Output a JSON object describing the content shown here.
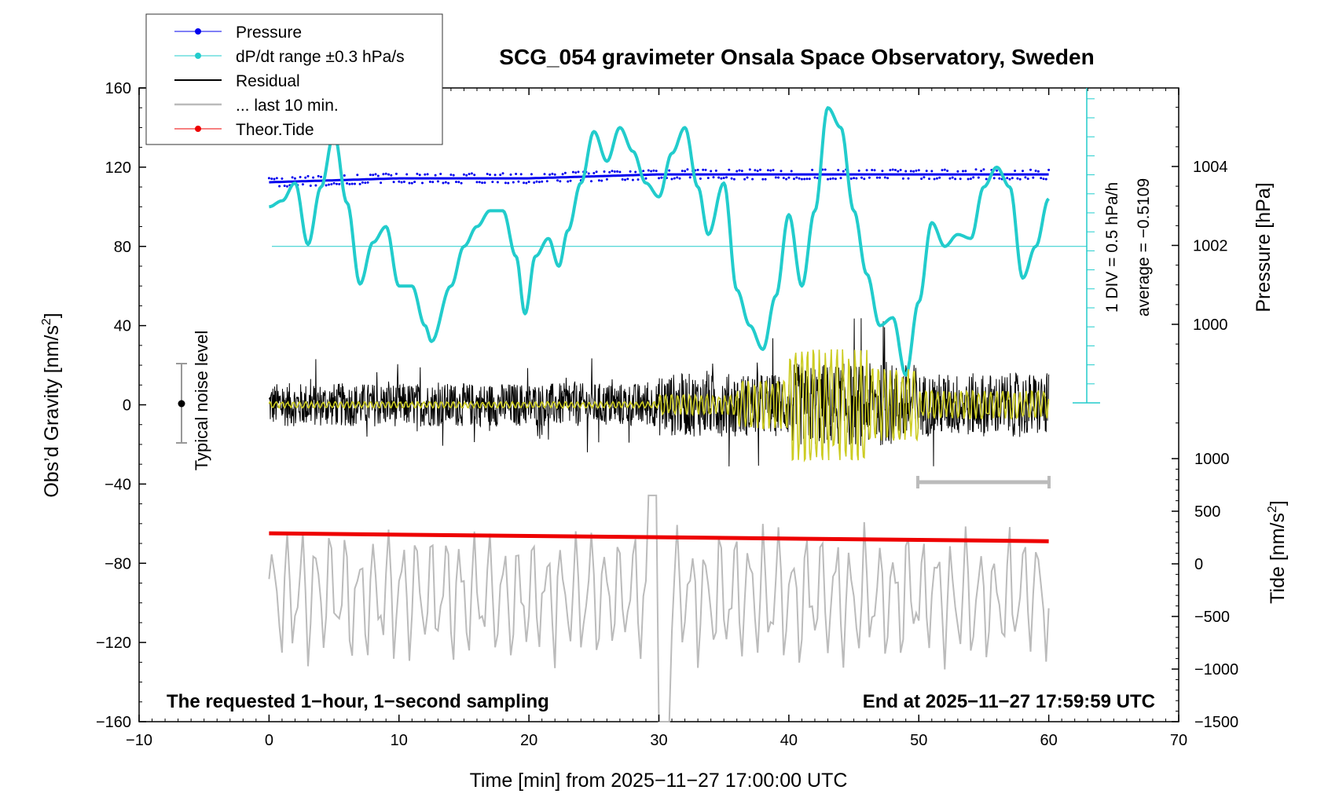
{
  "chart_data": {
    "type": "line",
    "title": "SCG_054 gravimeter Onsala Space Observatory, Sweden",
    "xlabel": "Time [min] from 2025−11−27 17:00:00 UTC",
    "ylabel": "Obs’d Gravity [nm/s²]",
    "ylabel_parts": [
      "Obs’d Gravity [nm/s",
      "2",
      "]"
    ],
    "y2label": "Pressure [hPa]",
    "y3label": "Tide [nm/s²]",
    "y3label_parts": [
      "Tide [nm/s",
      "2",
      "]"
    ],
    "xlim": [
      -10,
      70
    ],
    "ylim": [
      -160,
      160
    ],
    "xticks": [
      -10,
      0,
      10,
      20,
      30,
      40,
      50,
      60,
      70
    ],
    "xtick_labels": [
      "−10",
      "0",
      "10",
      "20",
      "30",
      "40",
      "50",
      "60",
      "70"
    ],
    "yticks": [
      -160,
      -120,
      -80,
      -40,
      0,
      40,
      80,
      120,
      160
    ],
    "ytick_labels": [
      "−160",
      "−120",
      "−80",
      "−40",
      "0",
      "40",
      "80",
      "120",
      "160"
    ],
    "pressure_axis": {
      "range": [
        996,
        1006
      ],
      "ticks": [
        1000,
        1002,
        1004
      ],
      "labels": [
        "1000",
        "1002",
        "1004"
      ]
    },
    "tide_axis": {
      "range": [
        -1500,
        1500
      ],
      "ticks": [
        -1500,
        -1000,
        -500,
        0,
        500,
        1000
      ],
      "labels": [
        "−1500",
        "−1000",
        "−500",
        "0",
        "500",
        "1000"
      ]
    },
    "legend": [
      {
        "label": "Pressure",
        "color": "#0000ee",
        "marker": "dot"
      },
      {
        "label": "dP/dt range ±0.3 hPa/s",
        "color": "#22cccc",
        "marker": "dot"
      },
      {
        "label": "Residual",
        "color": "#000000",
        "marker": "line"
      },
      {
        "label": "... last 10 min.",
        "color": "#bbbbbb",
        "marker": "line"
      },
      {
        "label": "Theor.Tide",
        "color": "#ee0000",
        "marker": "dot"
      }
    ],
    "scale_bar": {
      "label1": "1 DIV = 0.5 hPa/h",
      "label2": "average = −0.5109"
    },
    "noise_label": "Typical noise level",
    "annotation_left": "The requested 1−hour, 1−second sampling",
    "annotation_right": "End at 2025−11−27 17:59:59 UTC",
    "series": [
      {
        "name": "Pressure",
        "axis": "pressure",
        "color": "#0000ee",
        "x": [
          0,
          10,
          20,
          30,
          40,
          50,
          60
        ],
        "values": [
          1003.6,
          1003.7,
          1003.7,
          1003.8,
          1003.8,
          1003.8,
          1003.8
        ]
      },
      {
        "name": "dP/dt",
        "axis": "gravity",
        "color": "#22cccc",
        "x": [
          0,
          1,
          2,
          3,
          4,
          5,
          6,
          7,
          8,
          9,
          10,
          11,
          12,
          12.5,
          14,
          15,
          16,
          17,
          18,
          19,
          19.7,
          20.5,
          21.5,
          22.3,
          23,
          24,
          25,
          26,
          27,
          28,
          29,
          30,
          31,
          32,
          33,
          33.8,
          35,
          36,
          37,
          38,
          39,
          40,
          41,
          42,
          43,
          44,
          45,
          46,
          47,
          48,
          49,
          50,
          51,
          52,
          53,
          54,
          55,
          56,
          57,
          58,
          59,
          60
        ],
        "values": [
          100,
          103,
          112,
          81,
          110,
          137,
          102,
          61,
          82,
          90,
          60,
          60,
          40,
          32,
          60,
          80,
          90,
          98,
          98,
          75,
          46,
          75,
          84,
          70,
          88,
          112,
          138,
          123,
          140,
          128,
          112,
          105,
          127,
          140,
          110,
          86,
          112,
          58,
          40,
          28,
          55,
          96,
          60,
          98,
          150,
          140,
          98,
          66,
          40,
          44,
          15,
          52,
          92,
          80,
          86,
          84,
          110,
          120,
          110,
          64,
          80,
          104
        ]
      },
      {
        "name": "Theor.Tide",
        "axis": "tide",
        "color": "#ee0000",
        "x": [
          0,
          60
        ],
        "values": [
          290,
          215
        ]
      },
      {
        "name": "Residual",
        "axis": "gravity",
        "color": "#000000",
        "amplitude": [
          20,
          30
        ],
        "note": "noise around 0, larger after 30 min"
      },
      {
        "name": "... last 10 min.",
        "axis": "tide",
        "color": "#bbbbbb",
        "amplitude": [
          -1000,
          400
        ],
        "note": "oscillating gray trace around -300 nm/s²"
      }
    ]
  }
}
